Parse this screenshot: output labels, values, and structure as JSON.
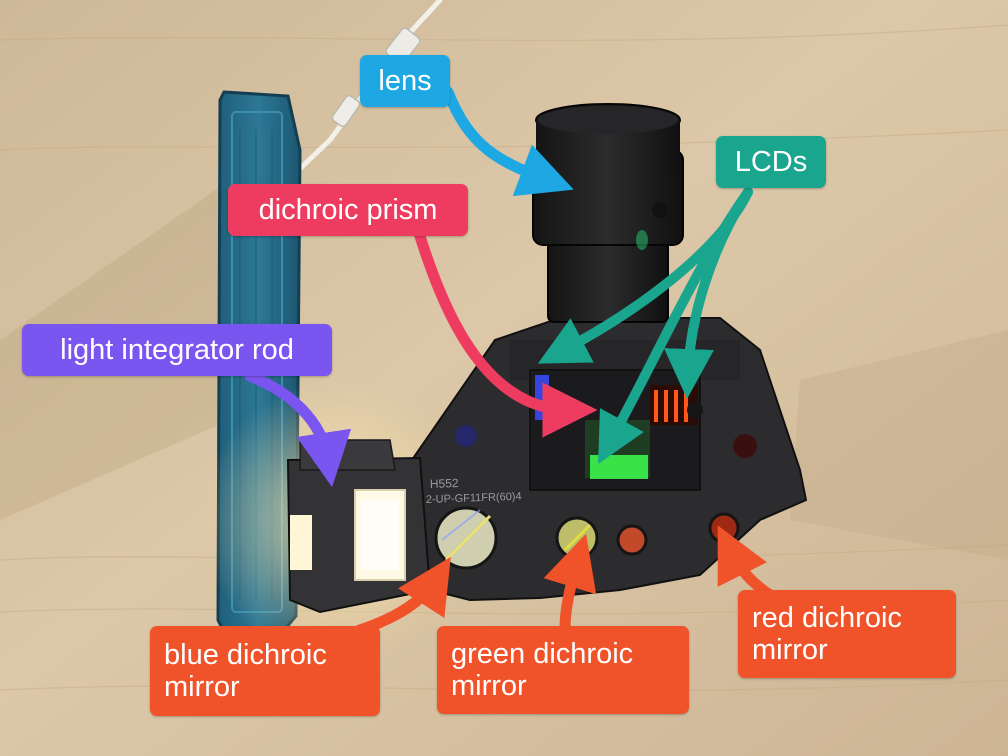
{
  "labels": {
    "lens": "lens",
    "lcds": "LCDs",
    "dichroic_prism": "dichroic prism",
    "light_integrator_rod": "light integrator rod",
    "blue_dichroic_mirror_line1": "blue dichroic",
    "blue_dichroic_mirror_line2": "mirror",
    "green_dichroic_mirror_line1": "green dichroic",
    "green_dichroic_mirror_line2": "mirror",
    "red_dichroic_mirror_line1": "red dichroic",
    "red_dichroic_mirror_line2": "mirror"
  },
  "module_print": {
    "line1": "H552",
    "line2": "2-UP-GF11FR(60)4"
  },
  "colors": {
    "lens": "#1da8e4",
    "lcds": "#1aa58f",
    "dichroic_prism": "#ee3c60",
    "light_integrator_rod": "#7a55ef",
    "mirrors": "#f0522a",
    "desk": "#d9c5a6",
    "module_body": "#2c2b2d"
  }
}
